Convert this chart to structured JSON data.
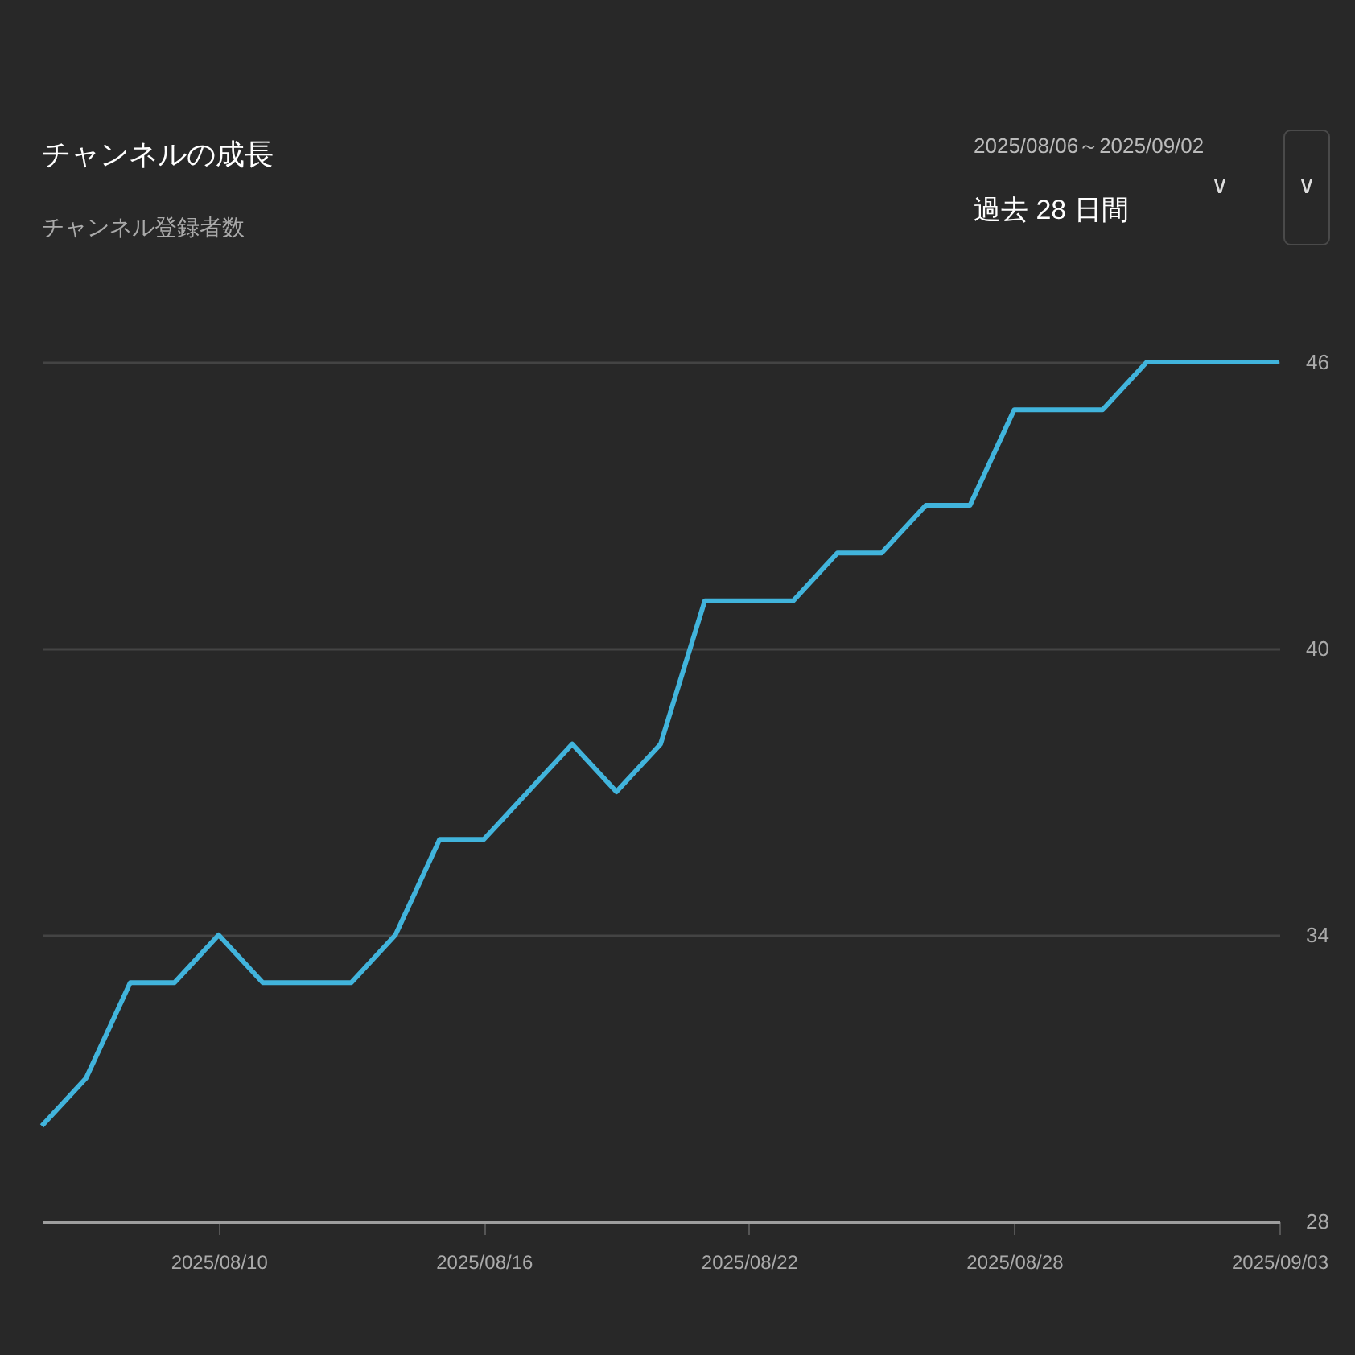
{
  "chart_data": {
    "type": "line",
    "title": "チャンネルの成長",
    "subtitle": "チャンネル登録者数",
    "annotations": [
      "2025/08/06～2025/09/02",
      "過去 28 日間",
      "∨",
      "∨"
    ],
    "x": [
      "2025-08-06",
      "2025-08-07",
      "2025-08-08",
      "2025-08-09",
      "2025-08-10",
      "2025-08-11",
      "2025-08-12",
      "2025-08-13",
      "2025-08-14",
      "2025-08-15",
      "2025-08-16",
      "2025-08-17",
      "2025-08-18",
      "2025-08-19",
      "2025-08-20",
      "2025-08-21",
      "2025-08-22",
      "2025-08-23",
      "2025-08-24",
      "2025-08-25",
      "2025-08-26",
      "2025-08-27",
      "2025-08-28",
      "2025-08-29",
      "2025-08-30",
      "2025-08-31",
      "2025-09-01",
      "2025-09-02",
      "2025-09-03"
    ],
    "series": [
      {
        "color": "#41b4dc",
        "values": [
          30,
          31,
          33,
          33,
          34,
          33,
          33,
          33,
          34,
          36,
          36,
          37,
          38,
          37,
          38,
          41,
          41,
          41,
          42,
          42,
          43,
          43,
          45,
          45,
          45,
          46,
          46,
          46,
          46
        ]
      }
    ],
    "xlim": [
      "2025-08-06",
      "2025-09-03"
    ],
    "xticks": [
      {
        "value": "2025-08-10",
        "label": "2025/08/10"
      },
      {
        "value": "2025-08-16",
        "label": "2025/08/16"
      },
      {
        "value": "2025-08-22",
        "label": "2025/08/22"
      },
      {
        "value": "2025-08-28",
        "label": "2025/08/28"
      },
      {
        "value": "2025-09-03",
        "label": "2025/09/03"
      }
    ],
    "ylim": [
      28,
      46
    ],
    "yticks": [
      28,
      34,
      40,
      46
    ],
    "grid": "y",
    "line_style": "solid"
  }
}
